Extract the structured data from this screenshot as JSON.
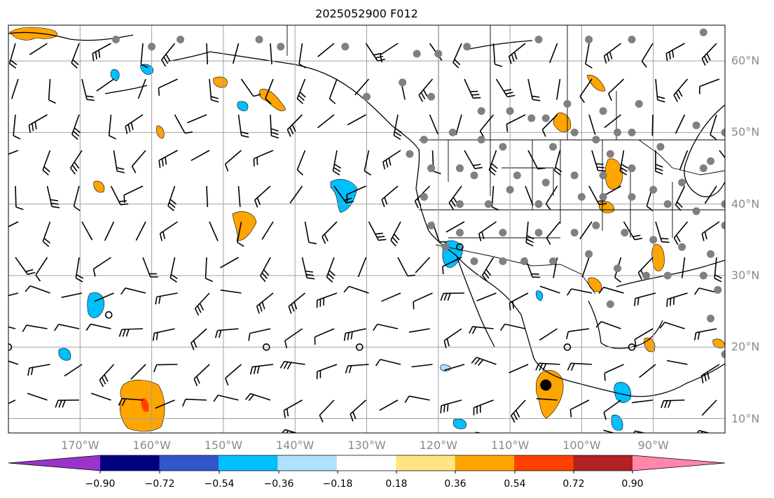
{
  "title": "2025052900 F012",
  "map": {
    "lon_range": [
      -180,
      -80
    ],
    "lat_range": [
      8,
      65
    ],
    "lon_ticks": [
      {
        "value": -170,
        "label": "170°W"
      },
      {
        "value": -160,
        "label": "160°W"
      },
      {
        "value": -150,
        "label": "150°W"
      },
      {
        "value": -140,
        "label": "140°W"
      },
      {
        "value": -130,
        "label": "130°W"
      },
      {
        "value": -120,
        "label": "120°W"
      },
      {
        "value": -110,
        "label": "110°W"
      },
      {
        "value": -100,
        "label": "100°W"
      },
      {
        "value": -90,
        "label": "90°W"
      }
    ],
    "lat_ticks": [
      {
        "value": 60,
        "label": "60°N"
      },
      {
        "value": 50,
        "label": "50°N"
      },
      {
        "value": 40,
        "label": "40°N"
      },
      {
        "value": 30,
        "label": "30°N"
      },
      {
        "value": 20,
        "label": "20°N"
      },
      {
        "value": 10,
        "label": "10°N"
      }
    ],
    "grid": true,
    "colors": {
      "land_line": "#000000",
      "grid": "#a0a0a0",
      "station": "#808080",
      "barb": "#000000"
    }
  },
  "colorbar": {
    "labels": [
      "−0.90",
      "−0.72",
      "−0.54",
      "−0.36",
      "−0.18",
      "0.18",
      "0.36",
      "0.54",
      "0.72",
      "0.90"
    ],
    "bins": [
      "#9933cc",
      "#000080",
      "#3355cc",
      "#00bfff",
      "#b0e0ff",
      "#ffffff",
      "#ffe680",
      "#ffa500",
      "#ff4000",
      "#b22222",
      "#ff88aa"
    ],
    "extend_low_color": "#9933cc",
    "extend_high_color": "#ff88aa"
  },
  "stations": [
    [
      -165,
      63
    ],
    [
      -160,
      62
    ],
    [
      -156,
      63
    ],
    [
      -145,
      63
    ],
    [
      -142,
      62
    ],
    [
      -133,
      62
    ],
    [
      -123,
      61
    ],
    [
      -120,
      61
    ],
    [
      -116,
      62
    ],
    [
      -106,
      63
    ],
    [
      -99,
      63
    ],
    [
      -93,
      63
    ],
    [
      -83,
      64
    ],
    [
      -130,
      55
    ],
    [
      -125,
      57
    ],
    [
      -121,
      55
    ],
    [
      -114,
      53
    ],
    [
      -110,
      53
    ],
    [
      -107,
      52
    ],
    [
      -105,
      52
    ],
    [
      -102,
      54
    ],
    [
      -97,
      53
    ],
    [
      -95,
      50
    ],
    [
      -92,
      54
    ],
    [
      -84,
      51
    ],
    [
      -80,
      50
    ],
    [
      -118,
      50
    ],
    [
      -122,
      49
    ],
    [
      -114,
      49
    ],
    [
      -111,
      48
    ],
    [
      -104,
      48
    ],
    [
      -101,
      50
    ],
    [
      -98,
      49
    ],
    [
      -96,
      47
    ],
    [
      -93,
      50
    ],
    [
      -89,
      48
    ],
    [
      -82,
      46
    ],
    [
      -78,
      49
    ],
    [
      -124,
      47
    ],
    [
      -121,
      45
    ],
    [
      -117,
      45
    ],
    [
      -115,
      44
    ],
    [
      -109,
      44
    ],
    [
      -105,
      43
    ],
    [
      -101,
      44
    ],
    [
      -97,
      44
    ],
    [
      -93,
      45
    ],
    [
      -90,
      42
    ],
    [
      -86,
      43
    ],
    [
      -83,
      45
    ],
    [
      -122,
      41
    ],
    [
      -117,
      40
    ],
    [
      -113,
      40
    ],
    [
      -110,
      42
    ],
    [
      -106,
      40
    ],
    [
      -100,
      41
    ],
    [
      -97,
      41
    ],
    [
      -93,
      41
    ],
    [
      -88,
      40
    ],
    [
      -84,
      39
    ],
    [
      -80,
      40
    ],
    [
      -121,
      37
    ],
    [
      -117,
      36
    ],
    [
      -111,
      36
    ],
    [
      -106,
      36
    ],
    [
      -101,
      36
    ],
    [
      -98,
      37
    ],
    [
      -94,
      36
    ],
    [
      -90,
      35
    ],
    [
      -86,
      34
    ],
    [
      -82,
      33
    ],
    [
      -80,
      37
    ],
    [
      -119,
      34
    ],
    [
      -115,
      32
    ],
    [
      -111,
      32
    ],
    [
      -108,
      32
    ],
    [
      -104,
      32
    ],
    [
      -99,
      33
    ],
    [
      -95,
      31
    ],
    [
      -91,
      30
    ],
    [
      -88,
      30
    ],
    [
      -83,
      30
    ],
    [
      -81,
      28
    ],
    [
      -96,
      26
    ],
    [
      -82,
      24
    ],
    [
      -80,
      19
    ]
  ],
  "circles_open": [
    [
      -180,
      20
    ],
    [
      -166,
      24.5
    ],
    [
      -144,
      20
    ],
    [
      -131,
      20
    ],
    [
      -117,
      34
    ],
    [
      -102,
      20
    ],
    [
      -93,
      20
    ]
  ],
  "circles_filled": [
    [
      -105,
      14.7
    ]
  ]
}
